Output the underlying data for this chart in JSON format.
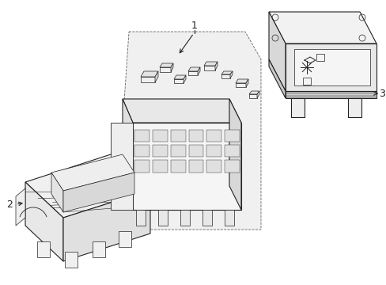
{
  "background_color": "#ffffff",
  "line_color": "#222222",
  "fill_white": "#ffffff",
  "fill_light": "#f0f0f0",
  "fill_mid": "#e0e0e0",
  "fill_dark": "#c8c8c8",
  "fill_box": "#d8d8d8",
  "label_1": "1",
  "label_2": "2",
  "label_3": "3",
  "lw_main": 0.8,
  "lw_detail": 0.5,
  "lw_inner": 0.4
}
